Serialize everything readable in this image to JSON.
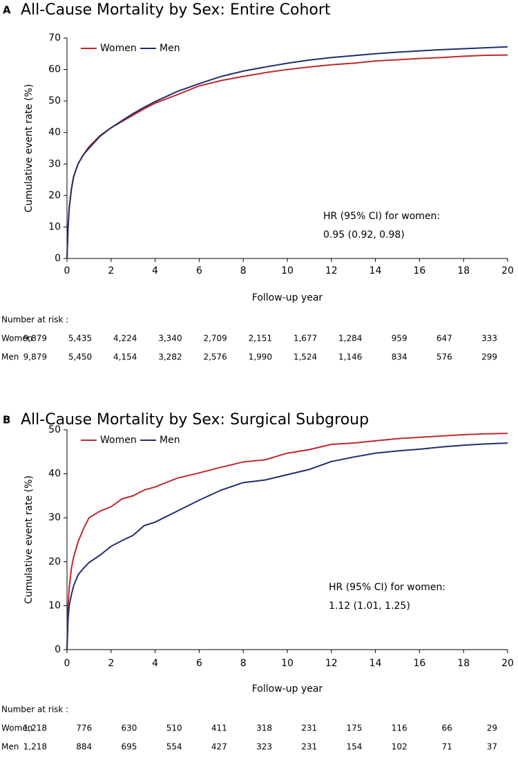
{
  "chart_data": [
    {
      "type": "line",
      "panel": "A",
      "title": "All-Cause Mortality by Sex: Entire Cohort",
      "xlabel": "Follow-up year",
      "ylabel": "Cumulative event rate (%)",
      "xlim": [
        0,
        20
      ],
      "xticks": [
        0,
        2,
        4,
        6,
        8,
        10,
        12,
        14,
        16,
        18,
        20
      ],
      "ylim": [
        0,
        70
      ],
      "yticks": [
        0,
        10,
        20,
        30,
        40,
        50,
        60,
        70
      ],
      "legend": "upper-left",
      "x": [
        0,
        0.05,
        0.1,
        0.2,
        0.3,
        0.5,
        0.75,
        1,
        1.5,
        2,
        2.5,
        3,
        3.5,
        4,
        5,
        6,
        7,
        8,
        9,
        10,
        11,
        12,
        13,
        14,
        15,
        16,
        17,
        18,
        19,
        20
      ],
      "series": [
        {
          "name": "Women",
          "color": "#c0272d",
          "values": [
            0,
            10,
            16,
            22,
            26,
            30,
            33,
            35.5,
            39,
            41.5,
            43.5,
            45.5,
            47.5,
            49.3,
            52,
            54.8,
            56.5,
            57.8,
            59,
            60,
            60.8,
            61.5,
            62,
            62.7,
            63.1,
            63.5,
            63.8,
            64.2,
            64.5,
            64.6
          ]
        },
        {
          "name": "Men",
          "color": "#1f2d6b",
          "values": [
            0,
            10,
            16,
            22,
            26,
            30,
            33,
            35,
            38.8,
            41.5,
            43.8,
            46,
            48,
            49.8,
            53,
            55.5,
            57.8,
            59.5,
            60.8,
            62,
            63,
            63.8,
            64.4,
            65,
            65.5,
            65.9,
            66.3,
            66.6,
            66.9,
            67.2
          ]
        }
      ],
      "annotation": [
        "HR (95% CI) for women:",
        "0.95 (0.92, 0.98)"
      ],
      "risk_table": {
        "title": "Number at risk :",
        "rows": [
          {
            "name": "Women",
            "values": [
              "9,879",
              "5,435",
              "4,224",
              "3,340",
              "2,709",
              "2,151",
              "1,677",
              "1,284",
              "959",
              "647",
              "333"
            ]
          },
          {
            "name": "Men",
            "values": [
              "9,879",
              "5,450",
              "4,154",
              "3,282",
              "2,576",
              "1,990",
              "1,524",
              "1,146",
              "834",
              "576",
              "299"
            ]
          }
        ]
      }
    },
    {
      "type": "line",
      "panel": "B",
      "title": "All-Cause Mortality by Sex: Surgical Subgroup",
      "xlabel": "Follow-up year",
      "ylabel": "Cumulative event rate (%)",
      "xlim": [
        0,
        20
      ],
      "xticks": [
        0,
        2,
        4,
        6,
        8,
        10,
        12,
        14,
        16,
        18,
        20
      ],
      "ylim": [
        0,
        50
      ],
      "yticks": [
        0,
        10,
        20,
        30,
        40,
        50
      ],
      "legend": "upper-left",
      "x": [
        0,
        0.05,
        0.1,
        0.2,
        0.3,
        0.5,
        0.75,
        1,
        1.5,
        2,
        2.5,
        3,
        3.5,
        4,
        5,
        6,
        7,
        8,
        9,
        10,
        11,
        12,
        13,
        14,
        15,
        16,
        17,
        18,
        19,
        20
      ],
      "series": [
        {
          "name": "Women",
          "color": "#c0272d",
          "values": [
            0,
            10,
            14,
            18.5,
            21,
            24.5,
            27.5,
            30,
            31.5,
            32.5,
            34.3,
            35,
            36.3,
            37,
            39,
            40.2,
            41.5,
            42.7,
            43.2,
            44.7,
            45.5,
            46.7,
            47,
            47.5,
            48,
            48.3,
            48.6,
            48.9,
            49.1,
            49.2
          ]
        },
        {
          "name": "Men",
          "color": "#1f2d6b",
          "values": [
            0,
            7,
            10,
            12.5,
            14.5,
            17,
            18.5,
            19.8,
            21.5,
            23.5,
            24.8,
            26,
            28.2,
            29,
            31.5,
            34,
            36.3,
            38,
            38.6,
            39.8,
            41,
            42.8,
            43.8,
            44.7,
            45.2,
            45.6,
            46.1,
            46.5,
            46.8,
            47
          ]
        }
      ],
      "annotation": [
        "HR (95% CI) for women:",
        "1.12 (1.01, 1.25)"
      ],
      "risk_table": {
        "title": "Number at risk :",
        "rows": [
          {
            "name": "Women",
            "values": [
              "1,218",
              "776",
              "630",
              "510",
              "411",
              "318",
              "231",
              "175",
              "116",
              "66",
              "29"
            ]
          },
          {
            "name": "Men",
            "values": [
              "1,218",
              "884",
              "695",
              "554",
              "427",
              "323",
              "231",
              "154",
              "102",
              "71",
              "37"
            ]
          }
        ]
      }
    }
  ]
}
